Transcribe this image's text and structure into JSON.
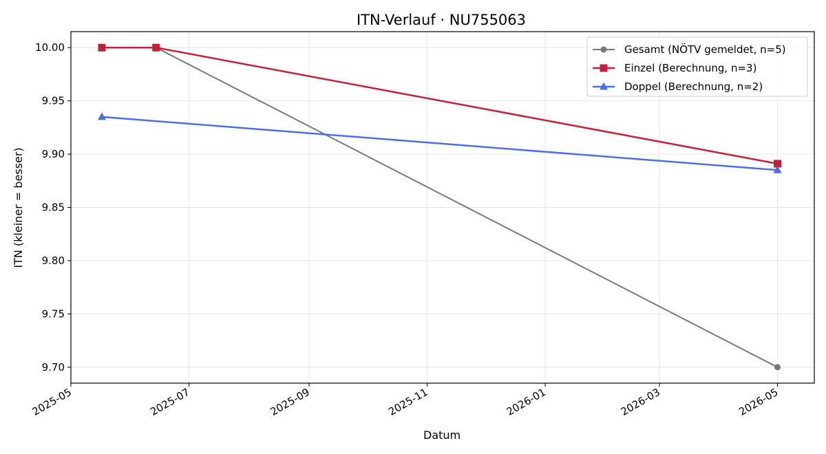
{
  "chart_data": {
    "type": "line",
    "title": "ITN-Verlauf · NU755063",
    "xlabel": "Datum",
    "ylabel": "ITN  (kleiner = besser)",
    "x_axis_type": "date",
    "xlim": [
      "2025-05-01",
      "2026-05-20"
    ],
    "ylim": [
      9.685,
      10.015
    ],
    "xticks": [
      "2025-05",
      "2025-07",
      "2025-09",
      "2025-11",
      "2026-01",
      "2026-03",
      "2026-05"
    ],
    "yticks": [
      "9.70",
      "9.75",
      "9.80",
      "9.85",
      "9.90",
      "9.95",
      "10.00"
    ],
    "grid": true,
    "legend_position": "top-right",
    "series": [
      {
        "name": "Gesamt (NÖTV gemeldet, n=5)",
        "color": "#4d4d4d",
        "marker": "circle",
        "points": [
          {
            "x": "2025-06-14",
            "y": 10.0
          },
          {
            "x": "2026-05-01",
            "y": 9.7
          }
        ]
      },
      {
        "name": "Einzel (Berechnung, n=3)",
        "color": "#c41e3a",
        "marker": "square",
        "points": [
          {
            "x": "2025-05-17",
            "y": 10.0
          },
          {
            "x": "2025-06-14",
            "y": 10.0
          },
          {
            "x": "2026-05-01",
            "y": 9.891
          }
        ]
      },
      {
        "name": "Doppel (Berechnung, n=2)",
        "color": "#4f6cea",
        "marker": "triangle",
        "points": [
          {
            "x": "2025-05-17",
            "y": 9.935
          },
          {
            "x": "2026-05-01",
            "y": 9.885
          }
        ]
      }
    ]
  }
}
